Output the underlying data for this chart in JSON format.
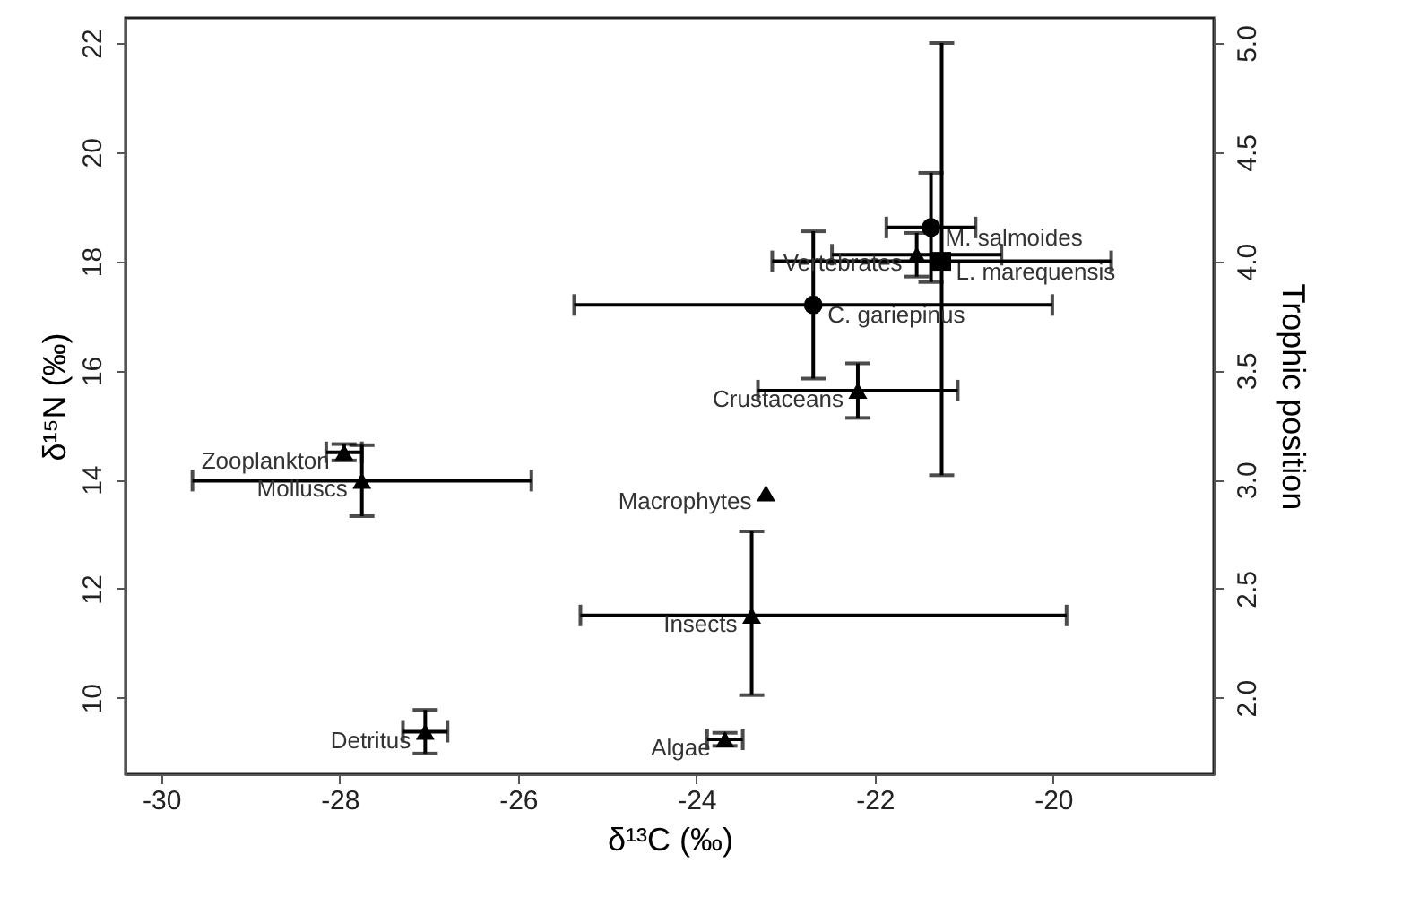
{
  "chart_data": {
    "type": "scatter",
    "xlabel": "δ¹³C (‰)",
    "ylabel": "δ¹⁵N (‰)",
    "y2label": "Trophic position",
    "xlim": [
      -30.4,
      -18.2
    ],
    "xticks": [
      -30,
      -28,
      -26,
      -24,
      -22,
      -20
    ],
    "ylim": [
      8.6,
      22.46
    ],
    "yticks": [
      10,
      12,
      14,
      16,
      18,
      20,
      22
    ],
    "y2lim": [
      1.65,
      5.115
    ],
    "y2ticks": [
      {
        "value": 2,
        "label": "2.0"
      },
      {
        "value": 2.5,
        "label": "2.5"
      },
      {
        "value": 3,
        "label": "3.0"
      },
      {
        "value": 3.5,
        "label": "3.5"
      },
      {
        "value": 4,
        "label": "4.0"
      },
      {
        "value": 4.5,
        "label": "4.5"
      },
      {
        "value": 5,
        "label": "5.0"
      }
    ],
    "series": [
      {
        "color": "#000000",
        "marker": "triangle",
        "x": [
          -21.53,
          -22.19,
          -27.95,
          -27.75,
          -23.22,
          -23.38,
          -27.04,
          -23.68
        ],
        "values": [
          18.12,
          15.63,
          14.5,
          13.98,
          13.75,
          11.51,
          9.38,
          9.24
        ],
        "errors": [
          0.4,
          0.5,
          0.15,
          0.65,
          null,
          [
            10.05,
            13.05
          ],
          0.4,
          0.12
        ],
        "xerrors": [
          0.95,
          1.12,
          0.2,
          1.9,
          null,
          [
            -25.3,
            -19.85
          ],
          0.25,
          0.2
        ]
      },
      {
        "color": "#000000",
        "marker": "circle",
        "x": [
          -21.37,
          -22.69
        ],
        "values": [
          18.62,
          17.2
        ],
        "errors": [
          1.0,
          1.35
        ],
        "xerrors": [
          0.5,
          2.68
        ]
      },
      {
        "color": "#000000",
        "marker": "square",
        "x": [
          -21.25
        ],
        "values": [
          18.0
        ],
        "errors": [
          [
            14.08,
            22.0
          ]
        ],
        "xerrors": [
          1.9
        ]
      }
    ],
    "annotations": [
      {
        "text": "Vertebrates",
        "x": -21.53,
        "y": 18.12
      },
      {
        "text": "Crustaceans",
        "x": -22.19,
        "y": 15.63
      },
      {
        "text": "Zooplankton",
        "x": -27.95,
        "y": 14.5
      },
      {
        "text": "Molluscs",
        "x": -27.75,
        "y": 13.98
      },
      {
        "text": "Macrophytes",
        "x": -23.22,
        "y": 13.75
      },
      {
        "text": "Insects",
        "x": -23.38,
        "y": 11.51
      },
      {
        "text": "Detritus",
        "x": -27.04,
        "y": 9.38
      },
      {
        "text": "Algae",
        "x": -23.68,
        "y": 9.24
      },
      {
        "text": "M. salmoides",
        "x": -21.37,
        "y": 18.62
      },
      {
        "text": "C. gariepinus",
        "x": -22.69,
        "y": 17.2
      },
      {
        "text": "L. marequensis",
        "x": -21.25,
        "y": 18.0
      }
    ]
  }
}
